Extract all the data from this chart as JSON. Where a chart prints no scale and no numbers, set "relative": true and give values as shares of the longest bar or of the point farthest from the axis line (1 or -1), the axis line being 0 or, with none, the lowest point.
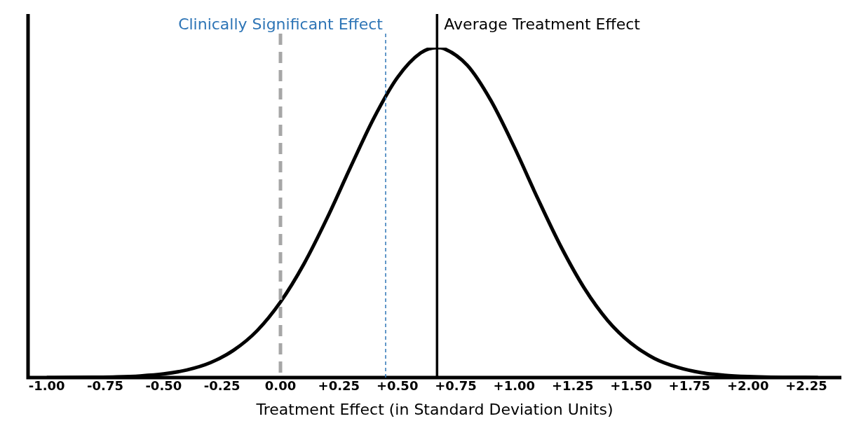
{
  "chart_data": {
    "type": "line",
    "relative": true,
    "xlabel": "Treatment Effect (in Standard Deviation Units)",
    "xlim": [
      -1.08,
      2.4
    ],
    "xticks": [
      {
        "value": -1,
        "label": "-1.00"
      },
      {
        "value": -0.75,
        "label": "-0.75"
      },
      {
        "value": -0.5,
        "label": "-0.50"
      },
      {
        "value": -0.25,
        "label": "-0.25"
      },
      {
        "value": 0,
        "label": "0.00"
      },
      {
        "value": 0.25,
        "label": "+0.25"
      },
      {
        "value": 0.5,
        "label": "+0.50"
      },
      {
        "value": 0.75,
        "label": "+0.75"
      },
      {
        "value": 1,
        "label": "+1.00"
      },
      {
        "value": 1.25,
        "label": "+1.25"
      },
      {
        "value": 1.5,
        "label": "+1.50"
      },
      {
        "value": 1.75,
        "label": "+1.75"
      },
      {
        "value": 2,
        "label": "+2.00"
      },
      {
        "value": 2.25,
        "label": "+2.25"
      }
    ],
    "series": [
      {
        "color": "#000000",
        "x": [
          -1.0,
          -0.9,
          -0.8,
          -0.7,
          -0.6,
          -0.5,
          -0.4,
          -0.3,
          -0.2,
          -0.1,
          0.0,
          0.1,
          0.2,
          0.3,
          0.4,
          0.5,
          0.6,
          0.67,
          0.7,
          0.8,
          0.9,
          1.0,
          1.1,
          1.2,
          1.3,
          1.4,
          1.5,
          1.6,
          1.7,
          1.8,
          1.9,
          2.0,
          2.1,
          2.2,
          2.3
        ],
        "values": [
          0.0001,
          0.0003,
          0.0008,
          0.002,
          0.005,
          0.011,
          0.023,
          0.045,
          0.083,
          0.142,
          0.229,
          0.344,
          0.484,
          0.638,
          0.787,
          0.909,
          0.984,
          1,
          0.997,
          0.946,
          0.84,
          0.699,
          0.544,
          0.397,
          0.271,
          0.173,
          0.104,
          0.058,
          0.031,
          0.015,
          0.007,
          0.003,
          0.001,
          0.0005,
          0.0002
        ]
      }
    ],
    "ref_lines": [
      {
        "axis": "x",
        "value": 0,
        "color": "#a6a6a6",
        "line_style": "dashed"
      },
      {
        "axis": "x",
        "value": 0.45,
        "label": "Clinically Significant Effect",
        "color": "#2e75b6",
        "line_style": "dotted"
      },
      {
        "axis": "x",
        "value": 0.67,
        "label": "Average Treatment Effect",
        "color": "#000000",
        "line_style": "solid"
      }
    ],
    "grid": false,
    "legend": false
  }
}
